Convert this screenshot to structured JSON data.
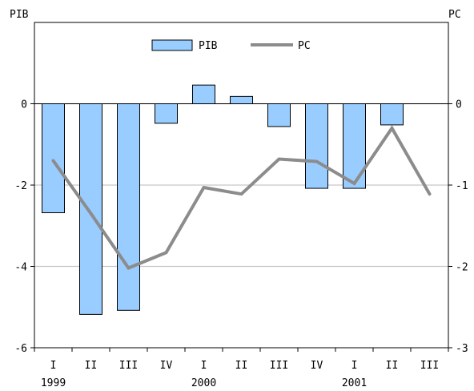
{
  "chart_data": {
    "type": "bar",
    "left_axis_label": "PIB",
    "right_axis_label": "PC",
    "legend": {
      "position": "top-center",
      "bar_label": "PIB",
      "line_label": "PC"
    },
    "categories": [
      "I",
      "II",
      "III",
      "IV",
      "I",
      "II",
      "III",
      "IV",
      "I",
      "II",
      "III"
    ],
    "year_labels": [
      {
        "label": "1999",
        "index": 0
      },
      {
        "label": "2000",
        "index": 4
      },
      {
        "label": "2001",
        "index": 8
      }
    ],
    "left_ylim": [
      -6,
      2
    ],
    "right_ylim": [
      -3,
      1
    ],
    "left_ticks": [
      {
        "value": -6,
        "label": "-6"
      },
      {
        "value": -4,
        "label": "-4"
      },
      {
        "value": -2,
        "label": "-2"
      },
      {
        "value": 0,
        "label": "0"
      }
    ],
    "right_ticks": [
      {
        "value": -3,
        "label": "-3"
      },
      {
        "value": -2,
        "label": "-2"
      },
      {
        "value": -1,
        "label": "-1"
      },
      {
        "value": 0,
        "label": "0"
      }
    ],
    "gridlines": [
      -4,
      -2,
      0
    ],
    "series": [
      {
        "name": "PIB",
        "kind": "bar",
        "axis": "left",
        "color": "#99ccff",
        "values": [
          -2.68,
          -5.18,
          -5.08,
          -0.48,
          0.46,
          0.18,
          -0.56,
          -2.08,
          -2.08,
          -0.52,
          null
        ]
      },
      {
        "name": "PC",
        "kind": "line",
        "axis": "right",
        "color": "#8c8c8c",
        "values": [
          -0.7,
          -1.35,
          -2.02,
          -1.83,
          -1.03,
          -1.11,
          -0.68,
          -0.71,
          -0.98,
          -0.3,
          -1.11
        ]
      }
    ]
  }
}
